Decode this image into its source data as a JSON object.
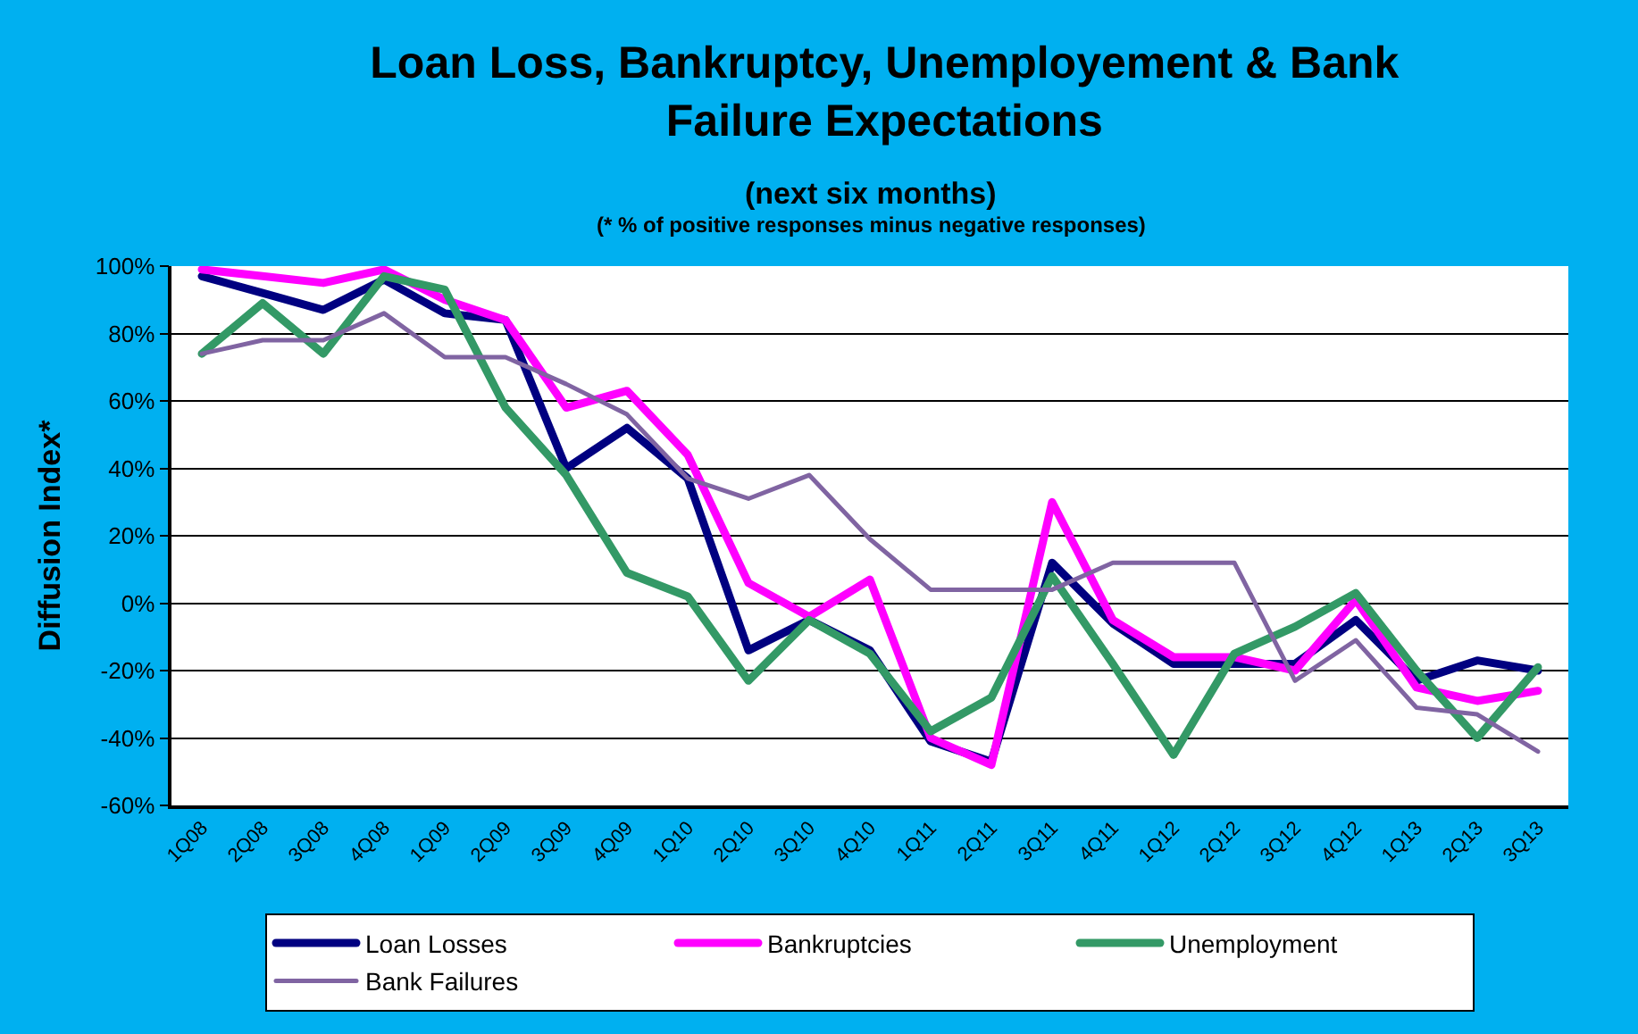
{
  "chart_data": {
    "type": "line",
    "title": "Loan Loss, Bankruptcy, Unemployement & Bank Failure Expectations",
    "subtitle": "(next six months)",
    "annotations": [
      "(* % of positive responses minus negative responses)"
    ],
    "ylabel": "Diffusion Index*",
    "categories": [
      "1Q08",
      "2Q08",
      "3Q08",
      "4Q08",
      "1Q09",
      "2Q09",
      "3Q09",
      "4Q09",
      "1Q10",
      "2Q10",
      "3Q10",
      "4Q10",
      "1Q11",
      "2Q11",
      "3Q11",
      "4Q11",
      "1Q12",
      "2Q12",
      "3Q12",
      "4Q12",
      "1Q13",
      "2Q13",
      "3Q13"
    ],
    "series": [
      {
        "name": "Loan Losses",
        "color": "#000080",
        "values": [
          97,
          92,
          87,
          96,
          86,
          84,
          40,
          52,
          37,
          -14,
          -5,
          -14,
          -41,
          -47,
          12,
          -6,
          -18,
          -18,
          -18,
          -5,
          -23,
          -17,
          -20
        ]
      },
      {
        "name": "Bankruptcies",
        "color": "#ff00ff",
        "values": [
          99,
          97,
          95,
          99,
          90,
          84,
          58,
          63,
          44,
          6,
          -4,
          7,
          -40,
          -48,
          30,
          -5,
          -16,
          -16,
          -20,
          1,
          -25,
          -29,
          -26
        ]
      },
      {
        "name": "Unemployment",
        "color": "#339966",
        "values": [
          74,
          89,
          74,
          97,
          93,
          58,
          38,
          9,
          2,
          -23,
          -5,
          -15,
          -38,
          -28,
          8,
          -18,
          -45,
          -15,
          -7,
          3,
          -20,
          -40,
          -19
        ]
      },
      {
        "name": "Bank Failures",
        "color": "#8064a2",
        "values": [
          74,
          78,
          78,
          86,
          73,
          73,
          65,
          56,
          37,
          31,
          38,
          19,
          4,
          4,
          4,
          12,
          12,
          12,
          -23,
          -11,
          -31,
          -33,
          -44
        ]
      }
    ],
    "ylim": [
      -60,
      100
    ],
    "yticks": [
      {
        "value": -60,
        "label": "-60%"
      },
      {
        "value": -40,
        "label": "-40%"
      },
      {
        "value": -20,
        "label": "-20%"
      },
      {
        "value": 0,
        "label": "0%"
      },
      {
        "value": 20,
        "label": "20%"
      },
      {
        "value": 40,
        "label": "40%"
      },
      {
        "value": 60,
        "label": "60%"
      },
      {
        "value": 80,
        "label": "80%"
      },
      {
        "value": 100,
        "label": "100%"
      }
    ],
    "grid": "y",
    "legend": "bottom",
    "marker": "none",
    "line_style": "solid"
  }
}
